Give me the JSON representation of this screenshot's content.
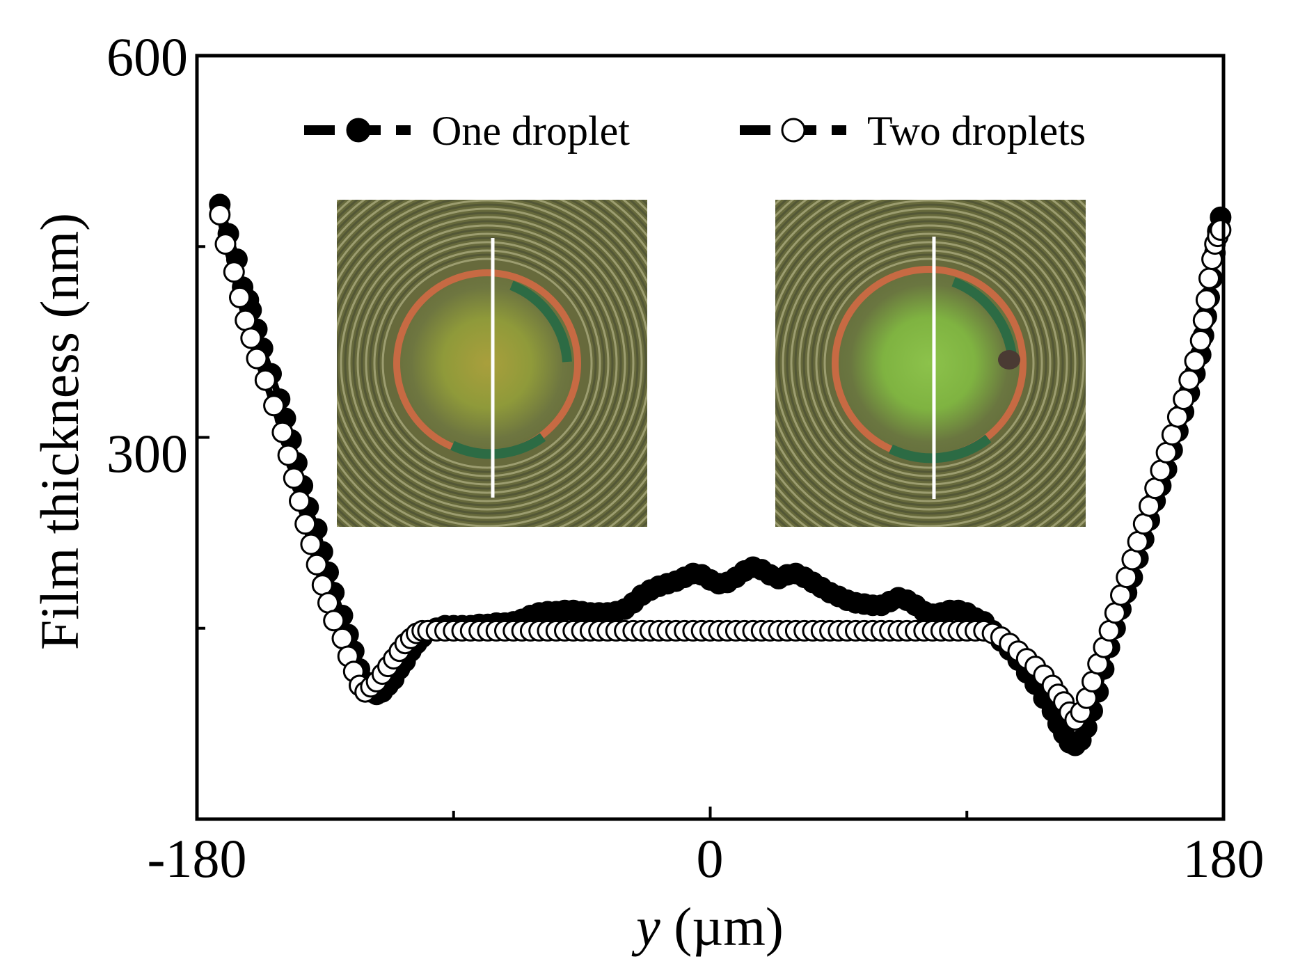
{
  "chart_data": {
    "type": "scatter",
    "title": "",
    "xlabel_symbol": "y",
    "xlabel_unit": " (µm)",
    "ylabel": "Film thickness (nm)",
    "xlim": [
      -180,
      180
    ],
    "ylim": [
      0,
      600
    ],
    "x_tick_labels": [
      "-180",
      "0",
      "180"
    ],
    "x_tick_values": [
      -180,
      0,
      180
    ],
    "x_minor_ticks": [
      -90,
      90
    ],
    "y_tick_labels": [
      "300",
      "600"
    ],
    "y_tick_values": [
      300,
      600
    ],
    "y_minor_ticks": [
      150,
      450
    ],
    "legend": {
      "position": "top",
      "entries": [
        {
          "label": "One droplet",
          "marker": "filled-circle"
        },
        {
          "label": "Two droplets",
          "marker": "open-circle"
        }
      ]
    },
    "insets": [
      {
        "name": "one-droplet-interferogram",
        "line_color": "#ffffff"
      },
      {
        "name": "two-droplets-interferogram",
        "line_color": "#ffffff"
      }
    ],
    "series": [
      {
        "name": "One droplet",
        "marker": "filled",
        "points": [
          [
            -172,
            483
          ],
          [
            -169,
            460
          ],
          [
            -166,
            440
          ],
          [
            -164,
            418
          ],
          [
            -162,
            408
          ],
          [
            -161,
            400
          ],
          [
            -159,
            385
          ],
          [
            -157,
            370
          ],
          [
            -154,
            350
          ],
          [
            -151,
            330
          ],
          [
            -149,
            315
          ],
          [
            -147,
            298
          ],
          [
            -145,
            280
          ],
          [
            -143,
            262
          ],
          [
            -141,
            245
          ],
          [
            -138,
            228
          ],
          [
            -136,
            210
          ],
          [
            -134,
            194
          ],
          [
            -132,
            178
          ],
          [
            -129,
            160
          ],
          [
            -127,
            145
          ],
          [
            -125,
            132
          ],
          [
            -123,
            118
          ],
          [
            -121,
            108
          ],
          [
            -119,
            100
          ],
          [
            -117,
            98
          ],
          [
            -115,
            100
          ],
          [
            -113,
            105
          ],
          [
            -111,
            110
          ],
          [
            -109,
            118
          ],
          [
            -107,
            124
          ],
          [
            -105,
            132
          ],
          [
            -103,
            138
          ],
          [
            -101,
            143
          ],
          [
            -99,
            148
          ],
          [
            -96,
            150
          ],
          [
            -93,
            152
          ],
          [
            -90,
            152
          ],
          [
            -87,
            152
          ],
          [
            -84,
            152
          ],
          [
            -81,
            153
          ],
          [
            -78,
            153
          ],
          [
            -75,
            154
          ],
          [
            -72,
            154
          ],
          [
            -69,
            155
          ],
          [
            -66,
            157
          ],
          [
            -63,
            160
          ],
          [
            -60,
            162
          ],
          [
            -57,
            163
          ],
          [
            -54,
            163
          ],
          [
            -51,
            164
          ],
          [
            -48,
            164
          ],
          [
            -45,
            163
          ],
          [
            -42,
            162
          ],
          [
            -39,
            162
          ],
          [
            -36,
            162
          ],
          [
            -33,
            163
          ],
          [
            -30,
            165
          ],
          [
            -27,
            170
          ],
          [
            -24,
            176
          ],
          [
            -21,
            180
          ],
          [
            -18,
            183
          ],
          [
            -15,
            185
          ],
          [
            -12,
            187
          ],
          [
            -9,
            190
          ],
          [
            -6,
            193
          ],
          [
            -3,
            192
          ],
          [
            0,
            188
          ],
          [
            3,
            185
          ],
          [
            6,
            186
          ],
          [
            9,
            190
          ],
          [
            12,
            195
          ],
          [
            15,
            198
          ],
          [
            18,
            196
          ],
          [
            21,
            192
          ],
          [
            24,
            189
          ],
          [
            27,
            192
          ],
          [
            30,
            193
          ],
          [
            33,
            190
          ],
          [
            36,
            186
          ],
          [
            39,
            182
          ],
          [
            42,
            178
          ],
          [
            45,
            175
          ],
          [
            48,
            172
          ],
          [
            51,
            170
          ],
          [
            54,
            169
          ],
          [
            57,
            168
          ],
          [
            60,
            168
          ],
          [
            63,
            171
          ],
          [
            66,
            174
          ],
          [
            69,
            172
          ],
          [
            72,
            168
          ],
          [
            75,
            163
          ],
          [
            78,
            161
          ],
          [
            81,
            162
          ],
          [
            84,
            164
          ],
          [
            87,
            164
          ],
          [
            90,
            162
          ],
          [
            93,
            158
          ],
          [
            96,
            155
          ],
          [
            99,
            148
          ],
          [
            102,
            140
          ],
          [
            105,
            133
          ],
          [
            108,
            125
          ],
          [
            111,
            115
          ],
          [
            114,
            106
          ],
          [
            117,
            95
          ],
          [
            120,
            85
          ],
          [
            122,
            75
          ],
          [
            124,
            67
          ],
          [
            126,
            60
          ],
          [
            128,
            58
          ],
          [
            130,
            62
          ],
          [
            132,
            72
          ],
          [
            134,
            85
          ],
          [
            136,
            100
          ],
          [
            138,
            118
          ],
          [
            140,
            135
          ],
          [
            142,
            150
          ],
          [
            144,
            165
          ],
          [
            146,
            178
          ],
          [
            148,
            190
          ],
          [
            150,
            205
          ],
          [
            152,
            220
          ],
          [
            154,
            235
          ],
          [
            156,
            250
          ],
          [
            158,
            262
          ],
          [
            160,
            275
          ],
          [
            162,
            290
          ],
          [
            164,
            305
          ],
          [
            166,
            320
          ],
          [
            168,
            335
          ],
          [
            170,
            350
          ],
          [
            172,
            365
          ],
          [
            173,
            380
          ],
          [
            174,
            395
          ],
          [
            175,
            410
          ],
          [
            176,
            425
          ],
          [
            177,
            445
          ],
          [
            178,
            462
          ],
          [
            179,
            473
          ]
        ]
      },
      {
        "name": "Two droplets",
        "marker": "open",
        "points": [
          [
            -172,
            475
          ],
          [
            -170,
            452
          ],
          [
            -167,
            430
          ],
          [
            -165,
            410
          ],
          [
            -163,
            392
          ],
          [
            -161,
            378
          ],
          [
            -159,
            362
          ],
          [
            -156,
            345
          ],
          [
            -153,
            325
          ],
          [
            -150,
            304
          ],
          [
            -148,
            286
          ],
          [
            -146,
            268
          ],
          [
            -144,
            250
          ],
          [
            -142,
            232
          ],
          [
            -140,
            216
          ],
          [
            -138,
            200
          ],
          [
            -136,
            184
          ],
          [
            -134,
            170
          ],
          [
            -132,
            156
          ],
          [
            -129,
            142
          ],
          [
            -127,
            128
          ],
          [
            -125,
            116
          ],
          [
            -123,
            105
          ],
          [
            -121,
            100
          ],
          [
            -119,
            104
          ],
          [
            -117,
            108
          ],
          [
            -115,
            114
          ],
          [
            -113,
            120
          ],
          [
            -111,
            126
          ],
          [
            -109,
            132
          ],
          [
            -107,
            138
          ],
          [
            -105,
            142
          ],
          [
            -103,
            146
          ],
          [
            -101,
            148
          ],
          [
            -99,
            148
          ],
          [
            -96,
            148
          ],
          [
            -93,
            148
          ],
          [
            -90,
            148
          ],
          [
            -87,
            148
          ],
          [
            -84,
            148
          ],
          [
            -81,
            148
          ],
          [
            -78,
            148
          ],
          [
            -75,
            148
          ],
          [
            -72,
            148
          ],
          [
            -69,
            148
          ],
          [
            -66,
            148
          ],
          [
            -63,
            148
          ],
          [
            -60,
            148
          ],
          [
            -57,
            148
          ],
          [
            -54,
            148
          ],
          [
            -51,
            148
          ],
          [
            -48,
            148
          ],
          [
            -45,
            148
          ],
          [
            -42,
            148
          ],
          [
            -39,
            148
          ],
          [
            -36,
            148
          ],
          [
            -33,
            148
          ],
          [
            -30,
            148
          ],
          [
            -27,
            148
          ],
          [
            -24,
            148
          ],
          [
            -21,
            148
          ],
          [
            -18,
            148
          ],
          [
            -15,
            148
          ],
          [
            -12,
            148
          ],
          [
            -9,
            148
          ],
          [
            -6,
            148
          ],
          [
            -3,
            148
          ],
          [
            0,
            148
          ],
          [
            3,
            148
          ],
          [
            6,
            148
          ],
          [
            9,
            148
          ],
          [
            12,
            148
          ],
          [
            15,
            148
          ],
          [
            18,
            148
          ],
          [
            21,
            148
          ],
          [
            24,
            148
          ],
          [
            27,
            148
          ],
          [
            30,
            148
          ],
          [
            33,
            148
          ],
          [
            36,
            148
          ],
          [
            39,
            148
          ],
          [
            42,
            148
          ],
          [
            45,
            148
          ],
          [
            48,
            148
          ],
          [
            51,
            148
          ],
          [
            54,
            148
          ],
          [
            57,
            148
          ],
          [
            60,
            148
          ],
          [
            63,
            148
          ],
          [
            66,
            148
          ],
          [
            69,
            148
          ],
          [
            72,
            148
          ],
          [
            75,
            148
          ],
          [
            78,
            148
          ],
          [
            81,
            148
          ],
          [
            84,
            148
          ],
          [
            87,
            148
          ],
          [
            90,
            148
          ],
          [
            93,
            148
          ],
          [
            96,
            148
          ],
          [
            99,
            146
          ],
          [
            102,
            143
          ],
          [
            105,
            138
          ],
          [
            108,
            132
          ],
          [
            111,
            126
          ],
          [
            114,
            120
          ],
          [
            117,
            113
          ],
          [
            120,
            105
          ],
          [
            122,
            98
          ],
          [
            124,
            92
          ],
          [
            126,
            84
          ],
          [
            128,
            78
          ],
          [
            130,
            84
          ],
          [
            132,
            95
          ],
          [
            134,
            108
          ],
          [
            136,
            122
          ],
          [
            138,
            135
          ],
          [
            140,
            148
          ],
          [
            142,
            162
          ],
          [
            144,
            176
          ],
          [
            146,
            190
          ],
          [
            148,
            204
          ],
          [
            150,
            218
          ],
          [
            152,
            232
          ],
          [
            154,
            246
          ],
          [
            156,
            260
          ],
          [
            158,
            274
          ],
          [
            160,
            288
          ],
          [
            162,
            302
          ],
          [
            164,
            316
          ],
          [
            166,
            330
          ],
          [
            168,
            345
          ],
          [
            170,
            360
          ],
          [
            172,
            376
          ],
          [
            173,
            392
          ],
          [
            174,
            408
          ],
          [
            175,
            425
          ],
          [
            176,
            440
          ],
          [
            177,
            452
          ],
          [
            178,
            458
          ],
          [
            179,
            463
          ]
        ]
      }
    ]
  }
}
